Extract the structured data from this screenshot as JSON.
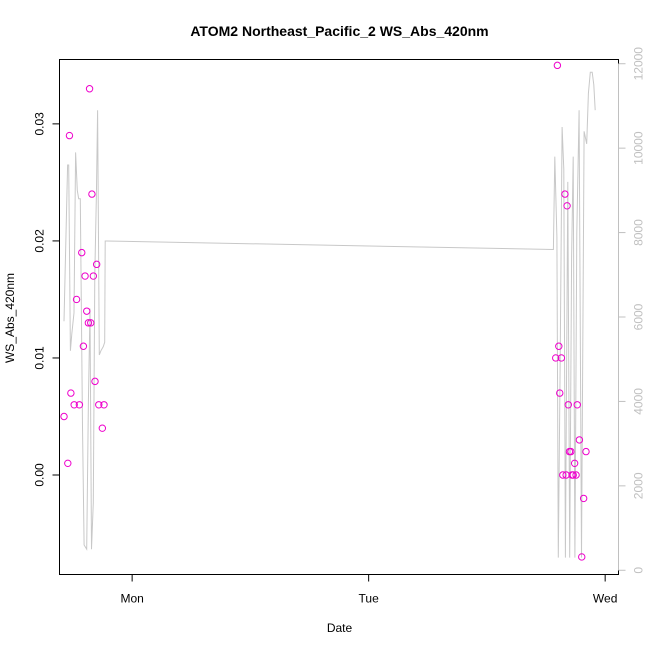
{
  "chart_data": {
    "type": "scatter",
    "title": "ATOM2 Northeast_Pacific_2 WS_Abs_420nm",
    "xlabel": "Date",
    "ylabel": "WS_Abs_420nm",
    "x_axis_unit": "days since Sunday 00:00",
    "x_ticks": [
      {
        "value": 1,
        "label": "Mon"
      },
      {
        "value": 2,
        "label": "Tue"
      },
      {
        "value": 3,
        "label": "Wed"
      }
    ],
    "xlim": [
      0.6929,
      3.0564
    ],
    "ylim": [
      -0.0085,
      0.0355
    ],
    "y_ticks": [
      0.0,
      0.01,
      0.02,
      0.03
    ],
    "y_tick_labels": [
      "0.00",
      "0.01",
      "0.02",
      "0.03"
    ],
    "y2lim": [
      -100,
      12100
    ],
    "y2_ticks": [
      0,
      2000,
      4000,
      6000,
      8000,
      10000,
      12000
    ],
    "y2_tick_labels": [
      "0",
      "2000",
      "4000",
      "6000",
      "8000",
      "10000",
      "12000"
    ],
    "grid": false,
    "series": [
      {
        "color": "#ee00cc",
        "marker": "open-circle",
        "points": [
          [
            0.712,
            0.005
          ],
          [
            0.728,
            0.001
          ],
          [
            0.735,
            0.029
          ],
          [
            0.741,
            0.007
          ],
          [
            0.755,
            0.006
          ],
          [
            0.765,
            0.015
          ],
          [
            0.777,
            0.006
          ],
          [
            0.787,
            0.019
          ],
          [
            0.794,
            0.011
          ],
          [
            0.801,
            0.017
          ],
          [
            0.808,
            0.014
          ],
          [
            0.815,
            0.013
          ],
          [
            0.82,
            0.033
          ],
          [
            0.825,
            0.013
          ],
          [
            0.83,
            0.024
          ],
          [
            0.836,
            0.017
          ],
          [
            0.843,
            0.008
          ],
          [
            0.85,
            0.018
          ],
          [
            0.859,
            0.006
          ],
          [
            0.874,
            0.004
          ],
          [
            0.881,
            0.006
          ],
          [
            2.791,
            0.01
          ],
          [
            2.798,
            0.035
          ],
          [
            2.804,
            0.011
          ],
          [
            2.808,
            0.007
          ],
          [
            2.815,
            0.01
          ],
          [
            2.821,
            0.0
          ],
          [
            2.83,
            0.024
          ],
          [
            2.835,
            0.0
          ],
          [
            2.839,
            0.023
          ],
          [
            2.844,
            0.006
          ],
          [
            2.849,
            0.002
          ],
          [
            2.855,
            0.002
          ],
          [
            2.86,
            0.0
          ],
          [
            2.865,
            0.0
          ],
          [
            2.871,
            0.001
          ],
          [
            2.877,
            0.0
          ],
          [
            2.882,
            0.006
          ],
          [
            2.891,
            0.003
          ],
          [
            2.901,
            -0.007
          ],
          [
            2.909,
            -0.002
          ],
          [
            2.919,
            0.002
          ]
        ]
      },
      {
        "color": "#c8c8c8",
        "line": true,
        "axis": "right",
        "points": [
          [
            0.712,
            5900
          ],
          [
            0.727,
            9600
          ],
          [
            0.732,
            9600
          ],
          [
            0.739,
            5200
          ],
          [
            0.745,
            5600
          ],
          [
            0.754,
            6100
          ],
          [
            0.761,
            9900
          ],
          [
            0.768,
            9000
          ],
          [
            0.774,
            8800
          ],
          [
            0.781,
            8800
          ],
          [
            0.79,
            3400
          ],
          [
            0.797,
            600
          ],
          [
            0.808,
            500
          ],
          [
            0.815,
            4000
          ],
          [
            0.822,
            6200
          ],
          [
            0.828,
            500
          ],
          [
            0.836,
            1600
          ],
          [
            0.842,
            7000
          ],
          [
            0.849,
            8900
          ],
          [
            0.854,
            10900
          ],
          [
            0.861,
            5100
          ],
          [
            0.868,
            5200
          ],
          [
            0.878,
            5300
          ],
          [
            0.884,
            5400
          ],
          [
            0.886,
            7800
          ],
          [
            0.89,
            7800
          ],
          [
            2.781,
            7600
          ],
          [
            2.787,
            9800
          ],
          [
            2.796,
            7900
          ],
          [
            2.802,
            300
          ],
          [
            2.81,
            5000
          ],
          [
            2.818,
            10500
          ],
          [
            2.825,
            9500
          ],
          [
            2.832,
            300
          ],
          [
            2.842,
            9200
          ],
          [
            2.85,
            300
          ],
          [
            2.858,
            7400
          ],
          [
            2.865,
            9800
          ],
          [
            2.872,
            300
          ],
          [
            2.88,
            8000
          ],
          [
            2.89,
            10900
          ],
          [
            2.9,
            300
          ],
          [
            2.911,
            10400
          ],
          [
            2.922,
            10100
          ],
          [
            2.929,
            11300
          ],
          [
            2.937,
            11800
          ],
          [
            2.945,
            11800
          ],
          [
            2.952,
            11500
          ],
          [
            2.958,
            10900
          ]
        ]
      }
    ]
  }
}
